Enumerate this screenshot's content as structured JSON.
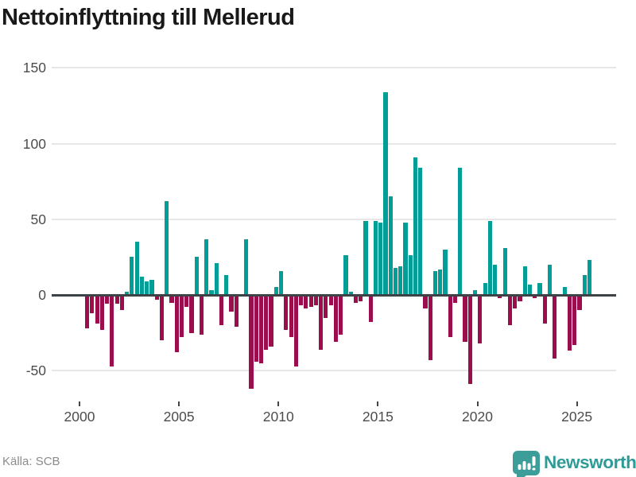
{
  "title": "Nettoinflyttning till Mellerud",
  "source": {
    "label": "Källa: SCB"
  },
  "branding": {
    "name": "Newsworthy",
    "icon": "newsworthy-pin-barchart-icon",
    "color": "#2d9b96"
  },
  "colors": {
    "positive_bar": "#009e96",
    "negative_bar": "#9b0d4c",
    "zero_line": "#3d4247",
    "gridline": "#e7e7e7",
    "title_text": "#191919",
    "axis_text": "#4c4c4c",
    "source_text": "#8b8b8b"
  },
  "chart_data": {
    "type": "bar",
    "title": "Nettoinflyttning till Mellerud",
    "xlabel": "",
    "ylabel": "",
    "frequency": "quarterly",
    "start_year": 2000,
    "start_quarter": 2,
    "end_year": 2025,
    "end_quarter": 3,
    "x_tick_labels": [
      2000,
      2005,
      2010,
      2015,
      2020,
      2025
    ],
    "y_ticks": [
      150,
      100,
      50,
      0,
      -50
    ],
    "y_tick_labels": [
      "150",
      "100",
      "50",
      "0",
      "-50"
    ],
    "ylim": [
      -70,
      155
    ],
    "grid": "horizontal",
    "legend": "none",
    "positive_color": "#009e96",
    "negative_color": "#9b0d4c",
    "values": [
      -22,
      -12,
      -19,
      -23,
      -6,
      -47,
      -6,
      -10,
      2,
      25,
      35,
      12,
      9,
      10,
      -3,
      -30,
      62,
      -5,
      -38,
      -28,
      -8,
      -25,
      25,
      -26,
      37,
      3,
      21,
      -20,
      13,
      -11,
      -21,
      -1,
      37,
      -62,
      -44,
      -45,
      -36,
      -34,
      5,
      16,
      -23,
      -28,
      -47,
      -7,
      -9,
      -8,
      -7,
      -36,
      -15,
      -7,
      -31,
      -26,
      26,
      2,
      -5,
      -4,
      49,
      -18,
      49,
      48,
      134,
      65,
      18,
      19,
      48,
      26,
      91,
      84,
      -9,
      -43,
      16,
      17,
      30,
      -28,
      -5,
      84,
      -31,
      -59,
      3,
      -32,
      8,
      49,
      20,
      -2,
      31,
      -20,
      -9,
      -4,
      19,
      7,
      -2,
      8,
      -19,
      20,
      -42,
      0,
      5,
      -37,
      -33,
      -10,
      13,
      23
    ]
  }
}
